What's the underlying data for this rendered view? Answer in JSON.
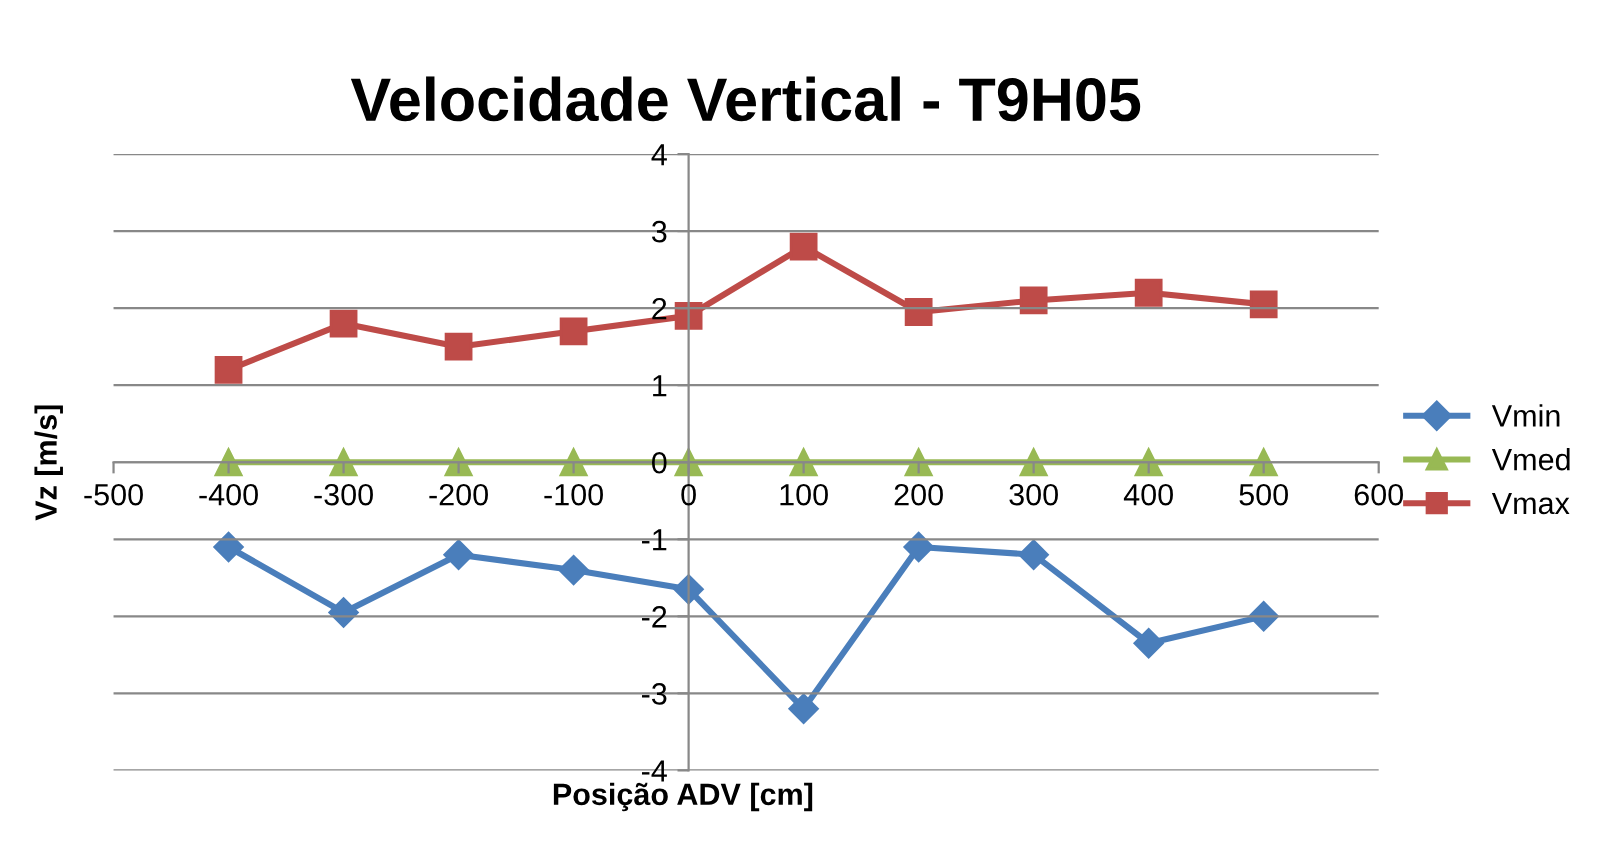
{
  "chart_data": {
    "type": "line",
    "title": "Velocidade Vertical - T9H05",
    "xlabel": "Posição ADV [cm]",
    "ylabel": "Vz [m/s]",
    "x": [
      -400,
      -300,
      -200,
      -100,
      0,
      100,
      200,
      300,
      400,
      500
    ],
    "xlim": [
      -500,
      600
    ],
    "xticks": [
      -500,
      -400,
      -300,
      -200,
      -100,
      0,
      100,
      200,
      300,
      400,
      500,
      600
    ],
    "ylim": [
      -4,
      4
    ],
    "yticks": [
      -4,
      -3,
      -2,
      -1,
      0,
      1,
      2,
      3,
      4
    ],
    "grid": "y",
    "legend": "right",
    "line_style": "solid",
    "series": [
      {
        "name": "Vmin",
        "color": "#4a7ebb",
        "marker": "diamond",
        "values": [
          -1.1,
          -1.95,
          -1.2,
          -1.4,
          -1.65,
          -3.2,
          -1.1,
          -1.2,
          -2.35,
          -2.0
        ]
      },
      {
        "name": "Vmed",
        "color": "#98b954",
        "marker": "triangle",
        "values": [
          0,
          0,
          0,
          0,
          0,
          0,
          0,
          0,
          0,
          0
        ]
      },
      {
        "name": "Vmax",
        "color": "#be4b48",
        "marker": "square",
        "values": [
          1.2,
          1.8,
          1.5,
          1.7,
          1.9,
          2.8,
          1.95,
          2.1,
          2.2,
          2.05
        ]
      }
    ]
  }
}
